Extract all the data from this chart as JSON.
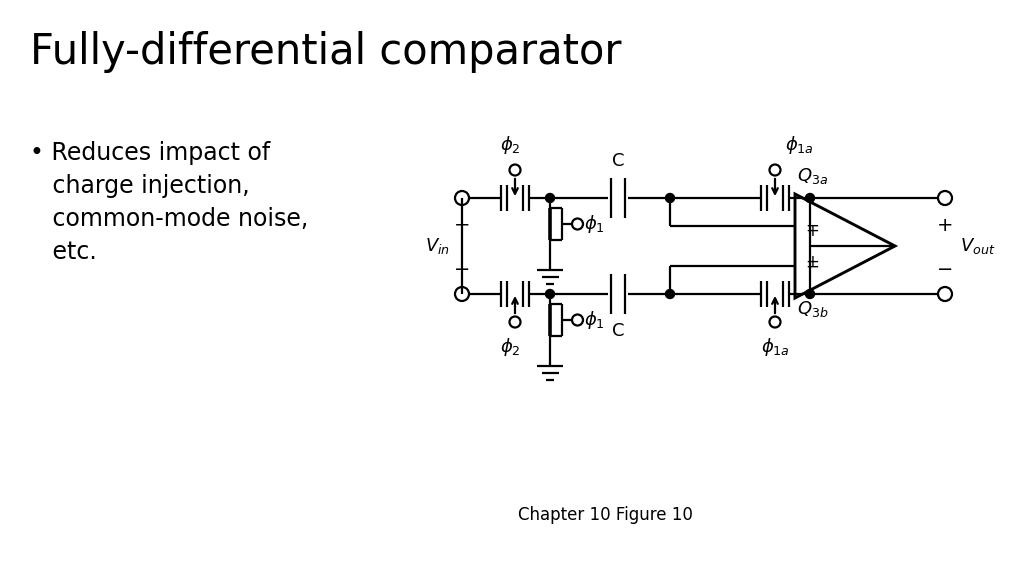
{
  "title": "Fully-differential comparator",
  "bullet_lines": [
    "Reduces impact of",
    "charge injection,",
    "common-mode noise,",
    "etc."
  ],
  "caption": "Chapter 10 Figure 10",
  "bg_color": "#ffffff",
  "line_color": "#000000",
  "title_fontsize": 30,
  "bullet_fontsize": 17,
  "caption_fontsize": 12,
  "label_fontsize": 13
}
